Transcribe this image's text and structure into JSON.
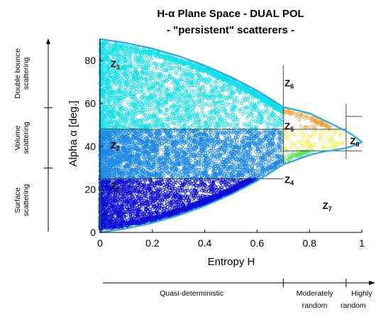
{
  "chart_data": {
    "type": "scatter",
    "title": "H-α Plane Space - DUAL POL",
    "subtitle": "- \"persistent\" scatterers -",
    "xlabel": "Entropy H",
    "ylabel": "Alpha α [deg.]",
    "xlim": [
      0,
      1
    ],
    "ylim": [
      0,
      90
    ],
    "xticks": [
      "0",
      "0.2",
      "0.4",
      "0.6",
      "0.8",
      "1"
    ],
    "yticks": [
      "0",
      "20",
      "40",
      "60",
      "80"
    ],
    "grid": false,
    "boundary": {
      "name": "feasible region boundary",
      "color": "#29a9e0",
      "upper": [
        [
          0,
          90
        ],
        [
          0.1,
          88.2
        ],
        [
          0.2,
          85.6
        ],
        [
          0.3,
          82.1
        ],
        [
          0.4,
          77.7
        ],
        [
          0.5,
          72.4
        ],
        [
          0.6,
          66.0
        ],
        [
          0.7,
          58.4
        ],
        [
          0.8,
          55.5
        ],
        [
          0.85,
          52.5
        ],
        [
          0.9,
          49.6
        ],
        [
          0.95,
          46.5
        ],
        [
          0.98,
          44.0
        ],
        [
          1,
          42.0
        ]
      ],
      "lower": [
        [
          0,
          0
        ],
        [
          0.1,
          1.8
        ],
        [
          0.2,
          4.4
        ],
        [
          0.3,
          7.9
        ],
        [
          0.4,
          12.3
        ],
        [
          0.5,
          17.6
        ],
        [
          0.6,
          24.0
        ],
        [
          0.7,
          31.6
        ],
        [
          0.8,
          36.0
        ],
        [
          0.85,
          37.5
        ],
        [
          0.9,
          38.4
        ],
        [
          0.95,
          39.6
        ],
        [
          0.98,
          41.0
        ],
        [
          1,
          42.0
        ]
      ]
    },
    "zone_boundaries": {
      "h_lines": [
        {
          "y": 48,
          "x_start": 0,
          "x_end": 0.7
        },
        {
          "y": 25,
          "x_start": 0,
          "x_end": 0.7
        },
        {
          "y": 48,
          "x_start": 0.7,
          "x_end": 0.94
        },
        {
          "y": 38,
          "x_start": 0.7,
          "x_end": 0.94
        },
        {
          "y": 54,
          "x_start": 0.94,
          "x_end": 1.0
        },
        {
          "y": 38,
          "x_start": 0.94,
          "x_end": 1.0
        }
      ],
      "v_lines": [
        {
          "x": 0.7,
          "y_start": 31.6,
          "y_end": 78
        },
        {
          "x": 0.94,
          "y_start": 34,
          "y_end": 60
        }
      ]
    },
    "series": [
      {
        "zone": "Z1",
        "color": "#0f10d4",
        "x_range": [
          0,
          0.7
        ],
        "y_range": [
          0,
          25
        ]
      },
      {
        "zone": "Z2",
        "color": "#1d88e4",
        "x_range": [
          0,
          0.7
        ],
        "y_range": [
          25,
          48
        ]
      },
      {
        "zone": "Z3",
        "color": "#14dfe6",
        "x_range": [
          0,
          0.7
        ],
        "y_range": [
          48,
          90
        ]
      },
      {
        "zone": "Z4",
        "color": "#5ee05e",
        "x_range": [
          0.7,
          0.9
        ],
        "y_range": [
          25,
          38
        ]
      },
      {
        "zone": "Z5",
        "color": "#eef03a",
        "x_range": [
          0.7,
          0.93
        ],
        "y_range": [
          38,
          48
        ]
      },
      {
        "zone": "Z6",
        "color": "#f0a040",
        "x_range": [
          0.7,
          0.88
        ],
        "y_range": [
          48,
          70
        ]
      }
    ],
    "zone_labels": [
      {
        "main": "Z",
        "sub": "1",
        "x": 0.04,
        "y": 20
      },
      {
        "main": "Z",
        "sub": "2",
        "x": 0.04,
        "y": 39
      },
      {
        "main": "Z",
        "sub": "3",
        "x": 0.04,
        "y": 77
      },
      {
        "main": "Z",
        "sub": "4",
        "x": 0.705,
        "y": 23
      },
      {
        "main": "Z",
        "sub": "5",
        "x": 0.705,
        "y": 48
      },
      {
        "main": "Z",
        "sub": "6",
        "x": 0.705,
        "y": 68
      },
      {
        "main": "Z",
        "sub": "7",
        "x": 0.85,
        "y": 11
      },
      {
        "main": "Z",
        "sub": "8",
        "x": 0.955,
        "y": 41
      }
    ],
    "left_annotations": [
      {
        "lines": [
          "Double bounce",
          "scattering"
        ],
        "y_range": [
          58,
          90
        ]
      },
      {
        "lines": [
          "Volume",
          "scattering"
        ],
        "y_range": [
          30,
          58
        ]
      },
      {
        "lines": [
          "Surface",
          "scattering"
        ],
        "y_range": [
          0,
          30
        ]
      }
    ],
    "bottom_annotations": [
      {
        "lines": [
          "Quasi-deterministic"
        ],
        "x_range": [
          0,
          0.7
        ]
      },
      {
        "lines": [
          "Moderately",
          "random"
        ],
        "x_range": [
          0.7,
          0.94
        ]
      },
      {
        "lines": [
          "Highly",
          "random"
        ],
        "x_range": [
          0.94,
          1.0
        ]
      }
    ]
  }
}
